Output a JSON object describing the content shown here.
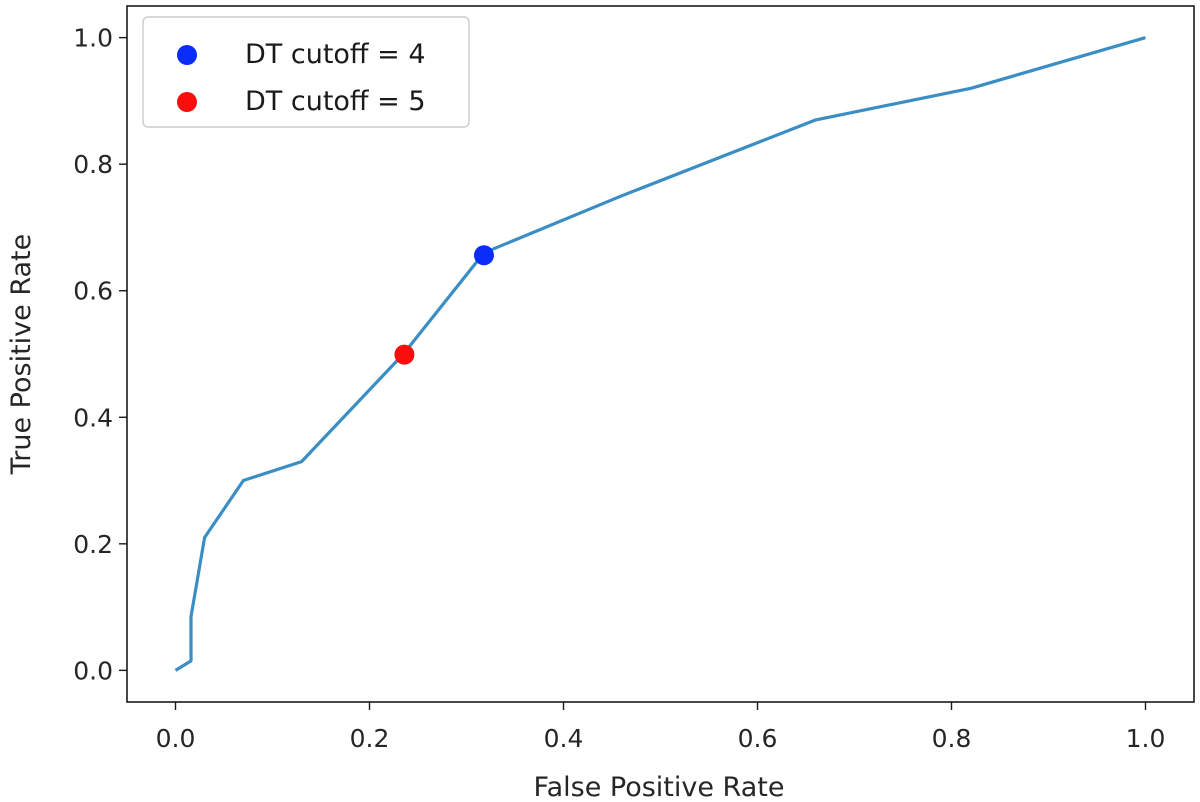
{
  "chart_data": {
    "type": "line",
    "xlabel": "False Positive Rate",
    "ylabel": "True Positive Rate",
    "xlim": [
      -0.05,
      1.05
    ],
    "ylim": [
      -0.05,
      1.05
    ],
    "x_ticks": [
      0.0,
      0.2,
      0.4,
      0.6,
      0.8,
      1.0
    ],
    "y_ticks": [
      0.0,
      0.2,
      0.4,
      0.6,
      0.8,
      1.0
    ],
    "x_tick_labels": [
      "0.0",
      "0.2",
      "0.4",
      "0.6",
      "0.8",
      "1.0"
    ],
    "y_tick_labels": [
      "0.0",
      "0.2",
      "0.4",
      "0.6",
      "0.8",
      "1.0"
    ],
    "grid": false,
    "legend_position": "top-left",
    "series": [
      {
        "type": "line",
        "color": "#3a8ec4",
        "x": [
          0.0,
          0.016,
          0.016,
          0.03,
          0.07,
          0.13,
          0.235,
          0.318,
          0.46,
          0.66,
          0.82,
          1.0
        ],
        "y": [
          0.0,
          0.015,
          0.085,
          0.21,
          0.3,
          0.33,
          0.5,
          0.66,
          0.75,
          0.87,
          0.92,
          1.0
        ]
      },
      {
        "type": "scatter",
        "name": "DT cutoff = 4",
        "color": "#0b2dfa",
        "x": [
          0.318
        ],
        "y": [
          0.656
        ]
      },
      {
        "type": "scatter",
        "name": "DT cutoff = 5",
        "color": "#f90d0d",
        "x": [
          0.236
        ],
        "y": [
          0.499
        ]
      }
    ]
  }
}
